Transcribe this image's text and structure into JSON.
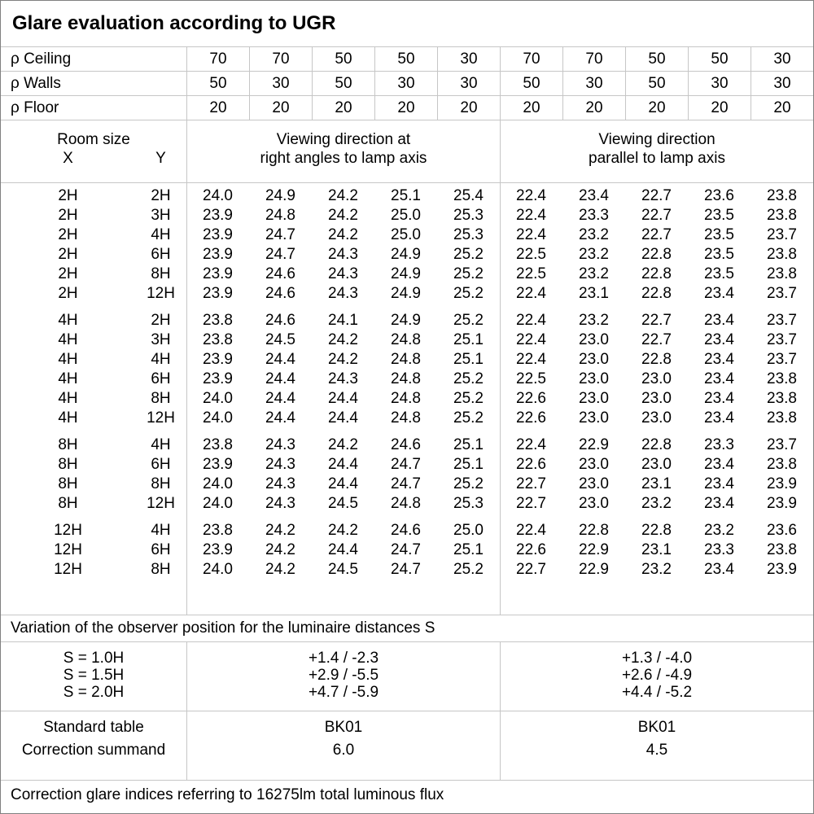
{
  "title": "Glare evaluation according to UGR",
  "reflectance": {
    "rows": [
      {
        "label": "ρ Ceiling",
        "values": [
          "70",
          "70",
          "50",
          "50",
          "30",
          "70",
          "70",
          "50",
          "50",
          "30"
        ]
      },
      {
        "label": "ρ Walls",
        "values": [
          "50",
          "30",
          "50",
          "30",
          "30",
          "50",
          "30",
          "50",
          "30",
          "30"
        ]
      },
      {
        "label": "ρ Floor",
        "values": [
          "20",
          "20",
          "20",
          "20",
          "20",
          "20",
          "20",
          "20",
          "20",
          "20"
        ]
      }
    ]
  },
  "header": {
    "room_size": "Room size",
    "x": "X",
    "y": "Y",
    "group1_line1": "Viewing direction at",
    "group1_line2": "right angles to lamp axis",
    "group2_line1": "Viewing direction",
    "group2_line2": "parallel to lamp axis"
  },
  "ugr_table": {
    "blocks": [
      [
        {
          "x": "2H",
          "y": "2H",
          "v": [
            "24.0",
            "24.9",
            "24.2",
            "25.1",
            "25.4",
            "22.4",
            "23.4",
            "22.7",
            "23.6",
            "23.8"
          ]
        },
        {
          "x": "2H",
          "y": "3H",
          "v": [
            "23.9",
            "24.8",
            "24.2",
            "25.0",
            "25.3",
            "22.4",
            "23.3",
            "22.7",
            "23.5",
            "23.8"
          ]
        },
        {
          "x": "2H",
          "y": "4H",
          "v": [
            "23.9",
            "24.7",
            "24.2",
            "25.0",
            "25.3",
            "22.4",
            "23.2",
            "22.7",
            "23.5",
            "23.7"
          ]
        },
        {
          "x": "2H",
          "y": "6H",
          "v": [
            "23.9",
            "24.7",
            "24.3",
            "24.9",
            "25.2",
            "22.5",
            "23.2",
            "22.8",
            "23.5",
            "23.8"
          ]
        },
        {
          "x": "2H",
          "y": "8H",
          "v": [
            "23.9",
            "24.6",
            "24.3",
            "24.9",
            "25.2",
            "22.5",
            "23.2",
            "22.8",
            "23.5",
            "23.8"
          ]
        },
        {
          "x": "2H",
          "y": "12H",
          "v": [
            "23.9",
            "24.6",
            "24.3",
            "24.9",
            "25.2",
            "22.4",
            "23.1",
            "22.8",
            "23.4",
            "23.7"
          ]
        }
      ],
      [
        {
          "x": "4H",
          "y": "2H",
          "v": [
            "23.8",
            "24.6",
            "24.1",
            "24.9",
            "25.2",
            "22.4",
            "23.2",
            "22.7",
            "23.4",
            "23.7"
          ]
        },
        {
          "x": "4H",
          "y": "3H",
          "v": [
            "23.8",
            "24.5",
            "24.2",
            "24.8",
            "25.1",
            "22.4",
            "23.0",
            "22.7",
            "23.4",
            "23.7"
          ]
        },
        {
          "x": "4H",
          "y": "4H",
          "v": [
            "23.9",
            "24.4",
            "24.2",
            "24.8",
            "25.1",
            "22.4",
            "23.0",
            "22.8",
            "23.4",
            "23.7"
          ]
        },
        {
          "x": "4H",
          "y": "6H",
          "v": [
            "23.9",
            "24.4",
            "24.3",
            "24.8",
            "25.2",
            "22.5",
            "23.0",
            "23.0",
            "23.4",
            "23.8"
          ]
        },
        {
          "x": "4H",
          "y": "8H",
          "v": [
            "24.0",
            "24.4",
            "24.4",
            "24.8",
            "25.2",
            "22.6",
            "23.0",
            "23.0",
            "23.4",
            "23.8"
          ]
        },
        {
          "x": "4H",
          "y": "12H",
          "v": [
            "24.0",
            "24.4",
            "24.4",
            "24.8",
            "25.2",
            "22.6",
            "23.0",
            "23.0",
            "23.4",
            "23.8"
          ]
        }
      ],
      [
        {
          "x": "8H",
          "y": "4H",
          "v": [
            "23.8",
            "24.3",
            "24.2",
            "24.6",
            "25.1",
            "22.4",
            "22.9",
            "22.8",
            "23.3",
            "23.7"
          ]
        },
        {
          "x": "8H",
          "y": "6H",
          "v": [
            "23.9",
            "24.3",
            "24.4",
            "24.7",
            "25.1",
            "22.6",
            "23.0",
            "23.0",
            "23.4",
            "23.8"
          ]
        },
        {
          "x": "8H",
          "y": "8H",
          "v": [
            "24.0",
            "24.3",
            "24.4",
            "24.7",
            "25.2",
            "22.7",
            "23.0",
            "23.1",
            "23.4",
            "23.9"
          ]
        },
        {
          "x": "8H",
          "y": "12H",
          "v": [
            "24.0",
            "24.3",
            "24.5",
            "24.8",
            "25.3",
            "22.7",
            "23.0",
            "23.2",
            "23.4",
            "23.9"
          ]
        }
      ],
      [
        {
          "x": "12H",
          "y": "4H",
          "v": [
            "23.8",
            "24.2",
            "24.2",
            "24.6",
            "25.0",
            "22.4",
            "22.8",
            "22.8",
            "23.2",
            "23.6"
          ]
        },
        {
          "x": "12H",
          "y": "6H",
          "v": [
            "23.9",
            "24.2",
            "24.4",
            "24.7",
            "25.1",
            "22.6",
            "22.9",
            "23.1",
            "23.3",
            "23.8"
          ]
        },
        {
          "x": "12H",
          "y": "8H",
          "v": [
            "24.0",
            "24.2",
            "24.5",
            "24.7",
            "25.2",
            "22.7",
            "22.9",
            "23.2",
            "23.4",
            "23.9"
          ]
        }
      ]
    ]
  },
  "variation_note": "Variation of the observer position for the luminaire distances S",
  "s_section": {
    "labels": [
      "S = 1.0H",
      "S = 1.5H",
      "S = 2.0H"
    ],
    "right_angles": [
      "+1.4 / -2.3",
      "+2.9 / -5.5",
      "+4.7 / -5.9"
    ],
    "parallel": [
      "+1.3 / -4.0",
      "+2.6 / -4.9",
      "+4.4 / -5.2"
    ]
  },
  "summary": {
    "row1_label": "Standard table",
    "row2_label": "Correction summand",
    "right_angles_table": "BK01",
    "right_angles_summand": "6.0",
    "parallel_table": "BK01",
    "parallel_summand": "4.5"
  },
  "footer_note": "Correction glare indices referring to 16275lm total luminous flux",
  "colors": {
    "background": "#ffffff",
    "text": "#000000",
    "outer_border": "#808080",
    "grid_line": "#c6c6c6"
  }
}
